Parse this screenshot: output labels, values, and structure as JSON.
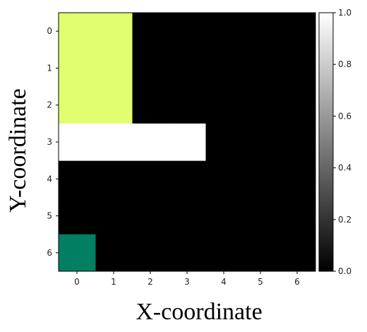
{
  "chart_data": {
    "type": "heatmap",
    "title": "",
    "xlabel": "X-coordinate",
    "ylabel": "Y-coordinate",
    "x_ticks": [
      "0",
      "1",
      "2",
      "3",
      "4",
      "5",
      "6"
    ],
    "y_ticks": [
      "0",
      "1",
      "2",
      "3",
      "4",
      "5",
      "6"
    ],
    "grid": false,
    "cells": [
      {
        "x": 0,
        "y": 0,
        "color": "#e0fe6f"
      },
      {
        "x": 1,
        "y": 0,
        "color": "#e0fe6f"
      },
      {
        "x": 0,
        "y": 1,
        "color": "#e0fe6f"
      },
      {
        "x": 1,
        "y": 1,
        "color": "#e0fe6f"
      },
      {
        "x": 0,
        "y": 2,
        "color": "#e0fe6f"
      },
      {
        "x": 1,
        "y": 2,
        "color": "#e0fe6f"
      },
      {
        "x": 0,
        "y": 3,
        "color": "#ffffff"
      },
      {
        "x": 1,
        "y": 3,
        "color": "#ffffff"
      },
      {
        "x": 2,
        "y": 3,
        "color": "#ffffff"
      },
      {
        "x": 3,
        "y": 3,
        "color": "#ffffff"
      },
      {
        "x": 0,
        "y": 6,
        "color": "#027f63"
      }
    ],
    "background_color": "#000000",
    "colorbar": {
      "range": [
        0.0,
        1.0
      ],
      "colormap": "gray",
      "tick_labels": [
        "0.0",
        "0.2",
        "0.4",
        "0.6",
        "0.8",
        "1.0"
      ],
      "tick_values": [
        0.0,
        0.2,
        0.4,
        0.6,
        0.8,
        1.0
      ]
    }
  }
}
